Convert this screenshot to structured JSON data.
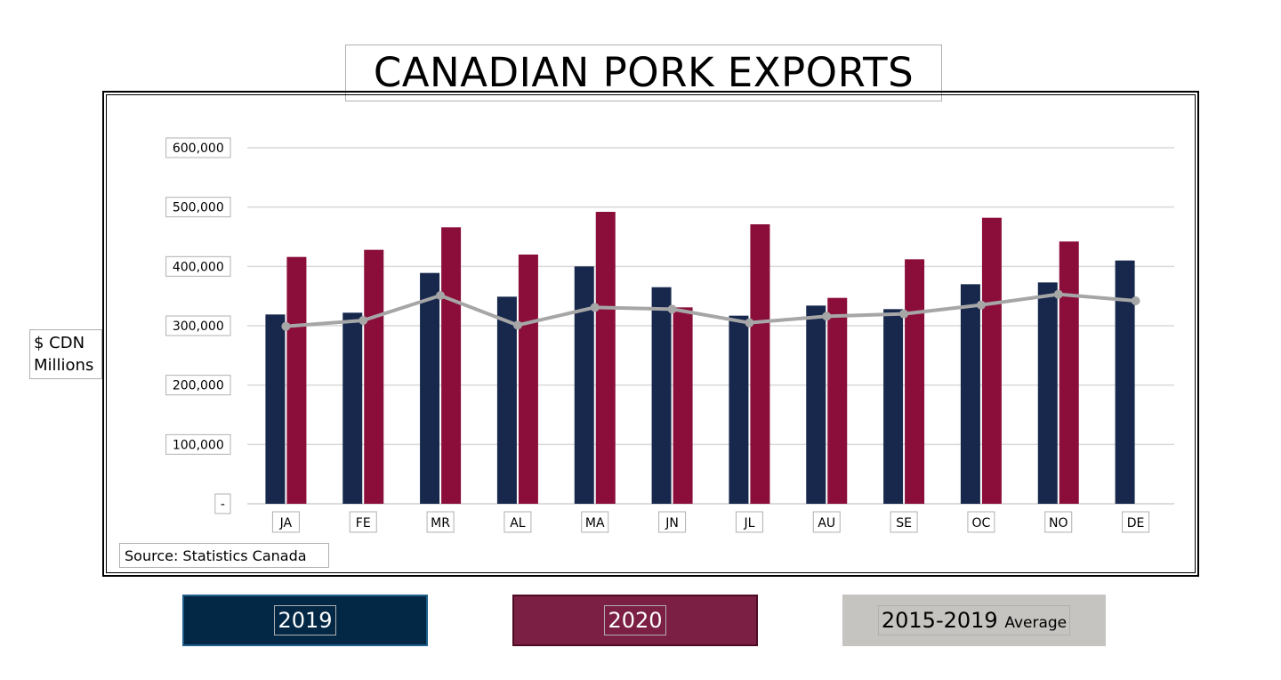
{
  "chart_data": {
    "type": "bar",
    "title": "CANADIAN PORK EXPORTS",
    "ylabel_lines": [
      "$ CDN",
      "Millions"
    ],
    "source": "Source: Statistics Canada",
    "ylim": [
      0,
      600000
    ],
    "yticks": [
      0,
      100000,
      200000,
      300000,
      400000,
      500000,
      600000
    ],
    "ytick_labels": [
      "-",
      "100,000",
      "200,000",
      "300,000",
      "400,000",
      "500,000",
      "600,000"
    ],
    "categories": [
      "JA",
      "FE",
      "MR",
      "AL",
      "MA",
      "JN",
      "JL",
      "AU",
      "SE",
      "OC",
      "NO",
      "DE"
    ],
    "grid": true,
    "legend_position": "bottom",
    "series": [
      {
        "name": "2019",
        "type": "bar",
        "color": "#17284c",
        "values": [
          319000,
          322000,
          389000,
          349000,
          400000,
          365000,
          317000,
          334000,
          328000,
          370000,
          373000,
          410000
        ]
      },
      {
        "name": "2020",
        "type": "bar",
        "color": "#8b0e3a",
        "values": [
          416000,
          428000,
          466000,
          420000,
          492000,
          331000,
          471000,
          347000,
          412000,
          482000,
          442000,
          null
        ]
      },
      {
        "name": "2015-2019",
        "name_suffix": "Average",
        "type": "line",
        "color": "#a6a6a6",
        "values": [
          299000,
          309000,
          351000,
          301000,
          331000,
          328000,
          305000,
          316000,
          320000,
          335000,
          353000,
          342000
        ]
      }
    ]
  },
  "legend": {
    "item_2019": "2019",
    "item_2020": "2020",
    "item_avg": "2015-2019",
    "item_avg_suffix": "Average",
    "colors": {
      "2019": "#032846",
      "2020": "#7c1f44",
      "avg": "#c6c4c0"
    }
  }
}
